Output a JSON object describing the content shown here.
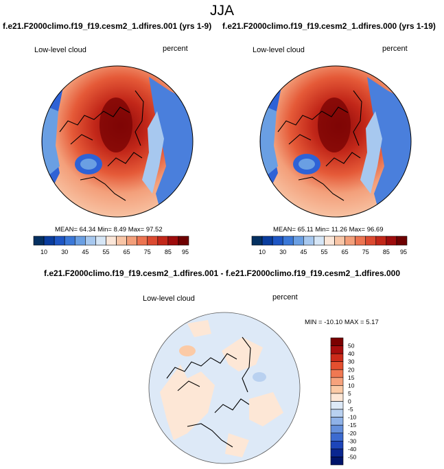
{
  "title": "JJA",
  "panel_left": {
    "run_title": "f.e21.F2000climo.f19_f19.cesm2_1.dfires.001 (yrs 1-9)",
    "field": "Low-level cloud",
    "units": "percent",
    "stats": {
      "mean_label": "MEAN=",
      "mean": "64.34",
      "min_label": "Min=",
      "min": "8.49",
      "max_label": "Max=",
      "max": "97.52"
    }
  },
  "panel_right": {
    "run_title": "f.e21.F2000climo.f19_f19.cesm2_1.dfires.000 (yrs 1-19)",
    "field": "Low-level cloud",
    "units": "percent",
    "stats": {
      "mean_label": "MEAN=",
      "mean": "65.11",
      "min_label": "Min=",
      "min": "11.26",
      "max_label": "Max=",
      "max": "96.69"
    }
  },
  "abs_colorbar": {
    "labels": [
      "10",
      "30",
      "45",
      "55",
      "65",
      "75",
      "85",
      "95"
    ],
    "colors": [
      "#053061",
      "#0a3d9e",
      "#1e56c4",
      "#3b78d8",
      "#6a9fe3",
      "#a7c8ef",
      "#d6e6f6",
      "#fbe6d8",
      "#f8c5a6",
      "#f39f7a",
      "#ec7451",
      "#dc4a30",
      "#c22719",
      "#9e0c0c",
      "#6e0000"
    ]
  },
  "panel_diff": {
    "title": "f.e21.F2000climo.f19_f19.cesm2_1.dfires.001 - f.e21.F2000climo.f19_f19.cesm2_1.dfires.000",
    "field": "Low-level cloud",
    "units": "percent",
    "stats": {
      "min_label": "MIN =",
      "min": "-10.10",
      "max_label": "MAX =",
      "max": "5.17"
    },
    "colorbar_labels": [
      "50",
      "40",
      "30",
      "20",
      "15",
      "10",
      "5",
      "0",
      "-5",
      "-10",
      "-15",
      "-20",
      "-30",
      "-40",
      "-50"
    ],
    "colorbar_colors": [
      "#7a0000",
      "#a70d0d",
      "#cc2a1a",
      "#e44f2f",
      "#f07852",
      "#f6a27c",
      "#fbcaa6",
      "#fde7d6",
      "#dde9f7",
      "#b9d1f0",
      "#8fb2e8",
      "#6590dc",
      "#3c6bd0",
      "#1d45b9",
      "#0a2690",
      "#00146a"
    ]
  }
}
